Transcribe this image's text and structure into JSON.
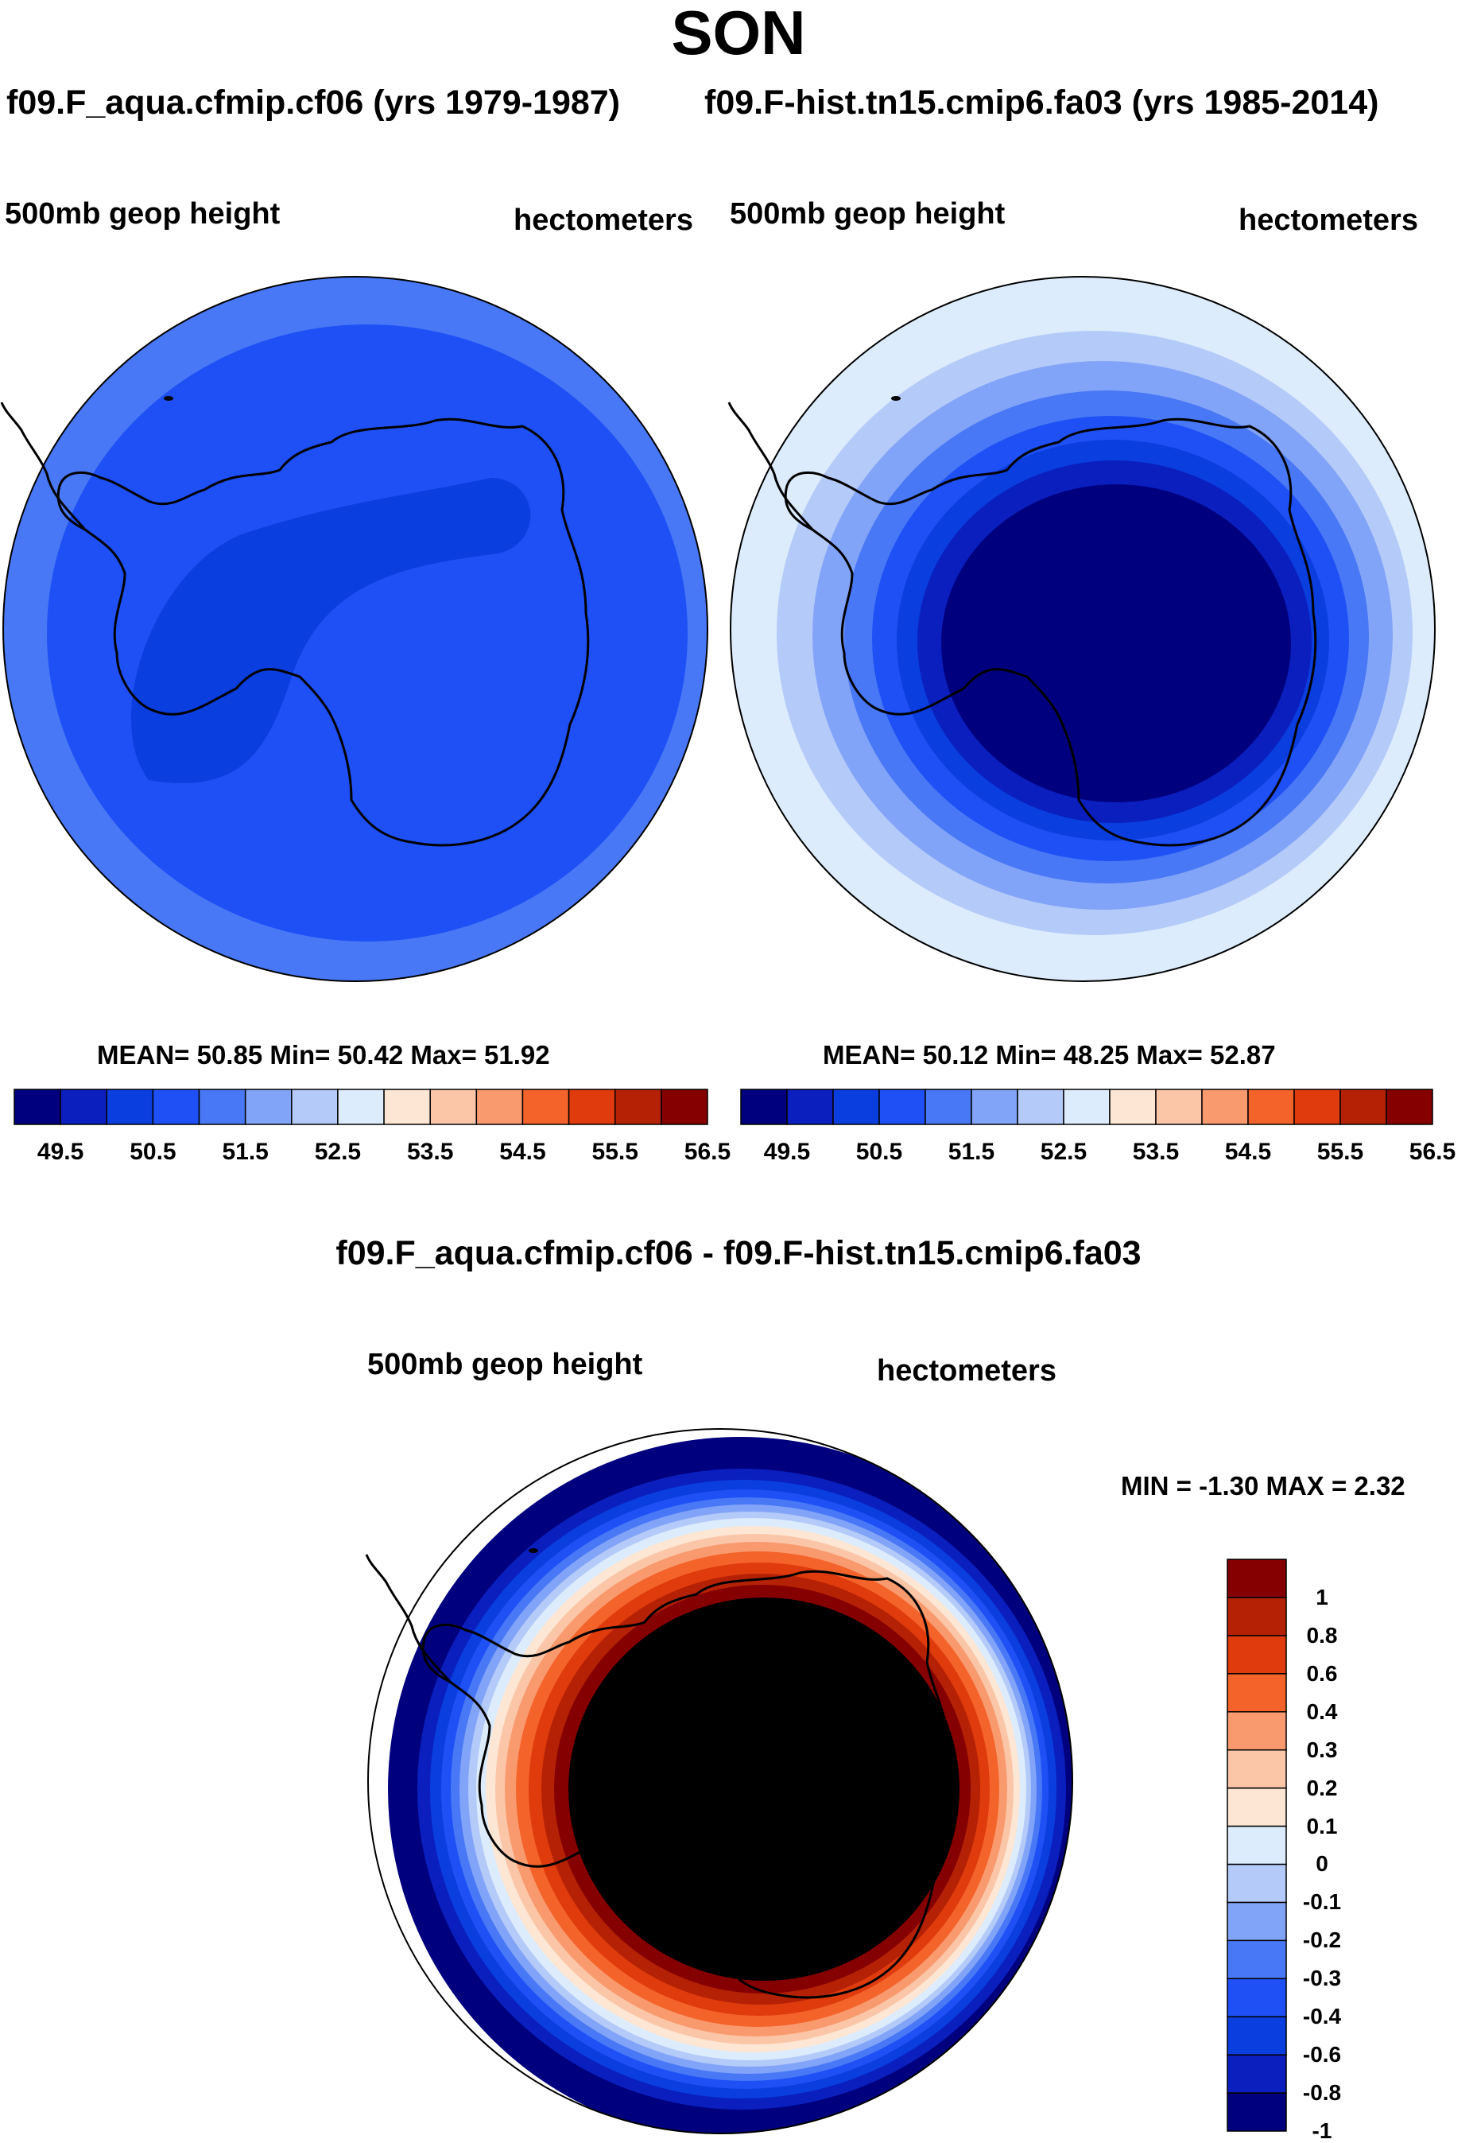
{
  "title": "SON",
  "colors": {
    "seq_palette": [
      "#00007e",
      "#0a1fbe",
      "#0a3edf",
      "#1e50f5",
      "#4878f5",
      "#82a4f8",
      "#b4caf9",
      "#dcecfc",
      "#fde6d4",
      "#fbc6a8",
      "#f99a6e",
      "#f4632a",
      "#df3b0c",
      "#b52104",
      "#850000"
    ],
    "diff_palette": [
      "#00007e",
      "#0a1fbe",
      "#0a3edf",
      "#1e50f5",
      "#4878f5",
      "#82a4f8",
      "#b4caf9",
      "#dcecfc",
      "#fde6d4",
      "#fbc6a8",
      "#f99a6e",
      "#f4632a",
      "#df3b0c",
      "#b52104",
      "#850000"
    ]
  },
  "chart_data": [
    {
      "type": "heatmap",
      "projection": "south polar stereographic",
      "title": "f09.F_aqua.cfmip.cf06 (yrs 1979-1987)",
      "left_label": "500mb geop height",
      "right_label": "hectometers",
      "stats": {
        "label": "MEAN=  50.85  Min=  50.42  Max=  51.92",
        "mean": 50.85,
        "min": 50.42,
        "max": 51.92
      },
      "colorbar": {
        "levels": [
          49.5,
          50.0,
          50.5,
          51.0,
          51.5,
          52.0,
          52.5,
          53.0,
          53.5,
          54.0,
          54.5,
          55.0,
          55.5,
          56.0,
          56.5
        ],
        "tick_labels": [
          "49.5",
          "50.5",
          "51.5",
          "52.5",
          "53.5",
          "54.5",
          "55.5",
          "56.5"
        ]
      },
      "field": {
        "inner_value": 50.3,
        "center_value": 50.8,
        "outer_value": 51.3
      }
    },
    {
      "type": "heatmap",
      "projection": "south polar stereographic",
      "title": "f09.F-hist.tn15.cmip6.fa03 (yrs 1985-2014)",
      "left_label": "500mb geop height",
      "right_label": "hectometers",
      "stats": {
        "label": "MEAN=  50.12  Min=  48.25  Max=  52.87",
        "mean": 50.12,
        "min": 48.25,
        "max": 52.87
      },
      "colorbar": {
        "levels": [
          49.5,
          50.0,
          50.5,
          51.0,
          51.5,
          52.0,
          52.5,
          53.0,
          53.5,
          54.0,
          54.5,
          55.0,
          55.5,
          56.0,
          56.5
        ],
        "tick_labels": [
          "49.5",
          "50.5",
          "51.5",
          "52.5",
          "53.5",
          "54.5",
          "55.5",
          "56.5"
        ]
      },
      "field": {
        "center_value": 49.0,
        "edge_value": 52.9
      }
    },
    {
      "type": "heatmap",
      "projection": "south polar stereographic",
      "title": "f09.F_aqua.cfmip.cf06 - f09.F-hist.tn15.cmip6.fa03",
      "left_label": "500mb geop height",
      "right_label": "hectometers",
      "stats": {
        "label": "MIN =  -1.30 MAX =   2.32",
        "min": -1.3,
        "max": 2.32
      },
      "colorbar": {
        "levels": [
          -1,
          -0.8,
          -0.6,
          -0.4,
          -0.3,
          -0.2,
          -0.1,
          0,
          0.1,
          0.2,
          0.3,
          0.4,
          0.6,
          0.8,
          1
        ],
        "tick_labels": [
          "1",
          "0.8",
          "0.6",
          "0.4",
          "0.3",
          "0.2",
          "0.1",
          "0",
          "-0.1",
          "-0.2",
          "-0.3",
          "-0.4",
          "-0.6",
          "-0.8",
          "-1"
        ]
      },
      "field": {
        "center_value": 1.5,
        "edge_value": -1.3
      }
    }
  ]
}
